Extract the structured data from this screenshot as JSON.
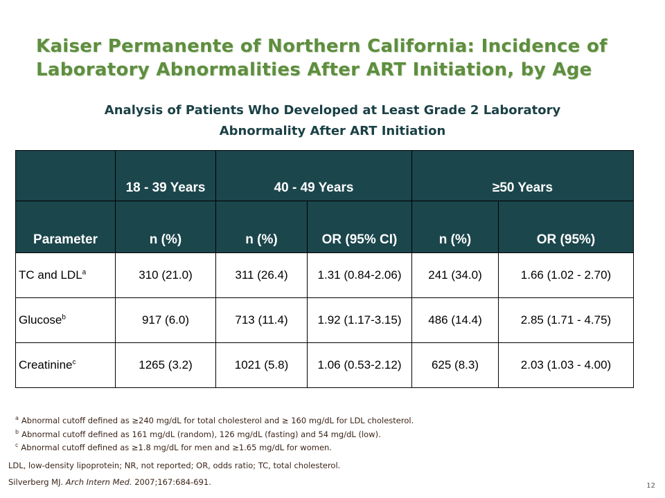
{
  "title": {
    "line1": "Kaiser Permanente of Northern California: Incidence of",
    "line2": "Laboratory Abnormalities After ART Initiation, by Age"
  },
  "subtitle": {
    "line1": "Analysis of Patients Who Developed at Least Grade 2 Laboratory",
    "line2": "Abnormality After ART Initiation"
  },
  "table": {
    "group_headers": [
      "",
      "18 - 39 Years",
      "40 - 49 Years",
      "≥50 Years"
    ],
    "column_headers": [
      "Parameter",
      "n (%)",
      "n (%)",
      "OR (95% CI)",
      "n (%)",
      "OR (95%)"
    ],
    "rows": [
      {
        "param": "TC and LDL",
        "sup": "a",
        "cells": [
          "310 (21.0)",
          "311 (26.4)",
          "1.31 (0.84-2.06)",
          "241 (34.0)",
          "1.66 (1.02 - 2.70)"
        ]
      },
      {
        "param": "Glucose",
        "sup": "b",
        "cells": [
          "917 (6.0)",
          "713 (11.4)",
          "1.92 (1.17-3.15)",
          "486 (14.4)",
          "2.85 (1.71 - 4.75)"
        ]
      },
      {
        "param": "Creatinine",
        "sup": "c",
        "cells": [
          "1265 (3.2)",
          "1021 (5.8)",
          "1.06 (0.53-2.12)",
          "625 (8.3)",
          "2.03 (1.03 - 4.00)"
        ]
      }
    ]
  },
  "footnotes": [
    {
      "letter": "a",
      "text": "Abnormal cutoff defined as ≥240 mg/dL for total cholesterol and ≥ 160 mg/dL for LDL cholesterol."
    },
    {
      "letter": "b",
      "text": "Abnormal cutoff defined as 161 mg/dL (random), 126 mg/dL (fasting)  and 54 mg/dL (low)."
    },
    {
      "letter": "c",
      "text": "Abnormal cutoff defined as  ≥1.8 mg/dL for men and  ≥1.65 mg/dL for women."
    }
  ],
  "abbreviations": "LDL, low-density lipoprotein; NR, not reported; OR, odds ratio; TC, total cholesterol.",
  "reference": {
    "authors": "Silverberg MJ.",
    "journal": "Arch Intern Med.",
    "details": "2007;167:684-691."
  },
  "page_number": "12"
}
